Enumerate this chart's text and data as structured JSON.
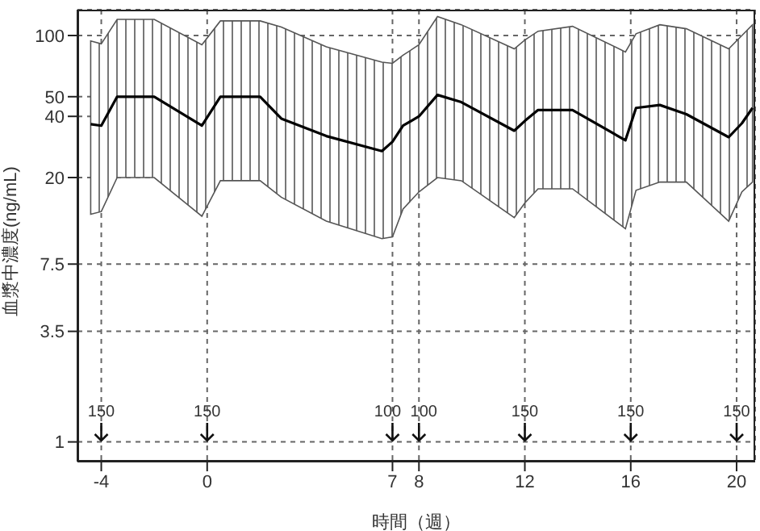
{
  "chart_data": {
    "type": "line",
    "xlabel": "時間（週）",
    "ylabel": "血漿中濃度(ng/mL)",
    "log": "y",
    "grid": true,
    "marker": "none",
    "line_style": "solid",
    "x": [
      -4.4,
      -4,
      -3.4,
      -2.0,
      -0.2,
      0.5,
      2.0,
      2.8,
      4.5,
      6.6,
      7,
      7.4,
      8,
      8.7,
      9.6,
      11.6,
      12,
      12.5,
      13.8,
      15.8,
      16.2,
      17.1,
      18.1,
      19.7,
      20.2,
      20.6
    ],
    "series": [
      {
        "color": "#000000",
        "values": [
          36.6,
          36,
          50,
          50,
          36,
          50,
          50,
          39,
          32,
          27,
          30,
          36,
          40,
          51,
          47,
          34,
          38,
          43,
          43,
          30.5,
          44,
          45.5,
          41,
          31.6,
          37,
          44
        ],
        "lower": [
          13.2,
          13.6,
          20,
          20,
          12.9,
          19.3,
          19.3,
          16,
          12.2,
          10.0,
          10.2,
          14,
          17,
          20,
          19.3,
          12.7,
          15,
          17.6,
          17.6,
          11.2,
          17.3,
          19,
          19,
          12.2,
          17,
          19
        ],
        "upper": [
          94,
          91,
          120,
          120,
          90,
          118,
          118,
          110,
          88,
          74,
          73,
          80,
          90,
          124,
          113,
          86,
          95,
          105,
          111,
          83,
          102,
          113,
          108,
          86,
          100,
          113
        ]
      }
    ],
    "xlim": [
      -4.9,
      20.7
    ],
    "xticks": [
      -4,
      0,
      7,
      8,
      12,
      16,
      20
    ],
    "ylim": [
      0.8,
      134
    ],
    "yticks": [
      1,
      3.5,
      7.5,
      20,
      40,
      50,
      100
    ],
    "annotations": [
      "150",
      "150",
      "100",
      "100",
      "150",
      "150",
      "150"
    ]
  }
}
